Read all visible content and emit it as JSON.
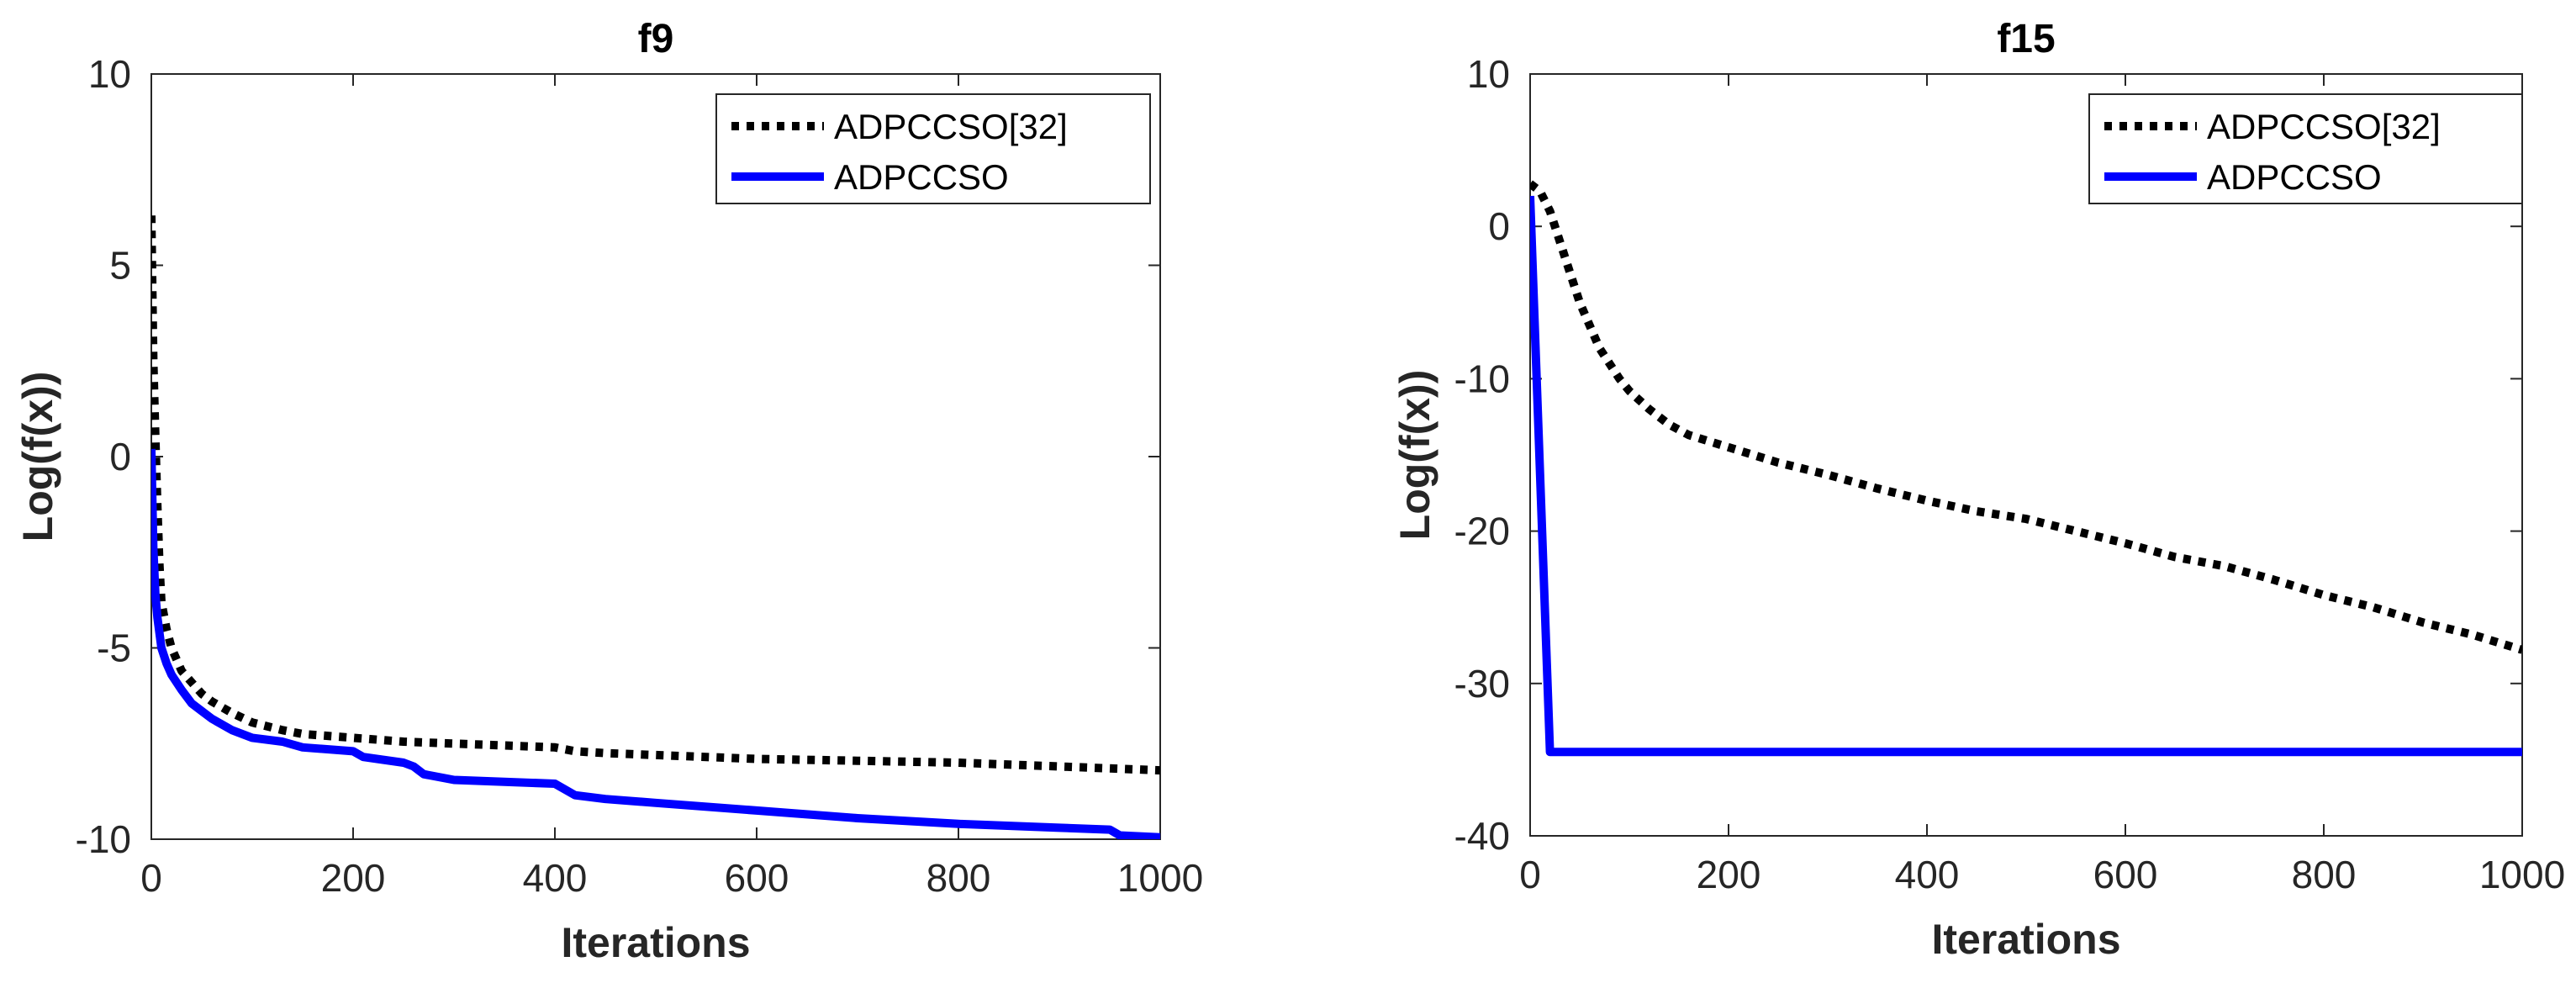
{
  "chart_data": [
    {
      "type": "line",
      "title": "f9",
      "xlabel": "Iterations",
      "ylabel": "Log(f(x))",
      "xlim": [
        0,
        1000
      ],
      "ylim": [
        -10,
        10
      ],
      "xticks": [
        0,
        200,
        400,
        600,
        800,
        1000
      ],
      "yticks": [
        -10,
        -5,
        0,
        5,
        10
      ],
      "legend_position": "top-right",
      "series": [
        {
          "name": "ADPCCSO[32]",
          "color": "#000000",
          "style": "dotted",
          "x": [
            0,
            2,
            4,
            6,
            8,
            10,
            15,
            20,
            30,
            40,
            50,
            60,
            80,
            100,
            130,
            150,
            200,
            250,
            300,
            350,
            400,
            420,
            450,
            500,
            600,
            700,
            800,
            900,
            1000
          ],
          "y": [
            6.3,
            2.5,
            0.5,
            -1.3,
            -2.8,
            -3.8,
            -4.5,
            -5.0,
            -5.6,
            -5.9,
            -6.2,
            -6.4,
            -6.7,
            -6.95,
            -7.15,
            -7.25,
            -7.35,
            -7.45,
            -7.5,
            -7.55,
            -7.6,
            -7.7,
            -7.75,
            -7.8,
            -7.9,
            -7.95,
            -8.0,
            -8.1,
            -8.2
          ]
        },
        {
          "name": "ADPCCSO",
          "color": "#0000ff",
          "style": "solid",
          "x": [
            0,
            2,
            4,
            6,
            8,
            10,
            15,
            20,
            30,
            40,
            50,
            60,
            80,
            100,
            130,
            150,
            200,
            210,
            250,
            260,
            270,
            300,
            400,
            420,
            450,
            500,
            600,
            700,
            800,
            900,
            950,
            960,
            1000
          ],
          "y": [
            0.2,
            -2.4,
            -3.6,
            -4.2,
            -4.6,
            -5.0,
            -5.4,
            -5.7,
            -6.1,
            -6.45,
            -6.65,
            -6.85,
            -7.15,
            -7.35,
            -7.45,
            -7.6,
            -7.7,
            -7.85,
            -8.0,
            -8.1,
            -8.3,
            -8.45,
            -8.55,
            -8.85,
            -8.95,
            -9.05,
            -9.25,
            -9.45,
            -9.6,
            -9.7,
            -9.75,
            -9.9,
            -9.95
          ]
        }
      ]
    },
    {
      "type": "line",
      "title": "f15",
      "xlabel": "Iterations",
      "ylabel": "Log(f(x))",
      "xlim": [
        0,
        1000
      ],
      "ylim": [
        -40,
        10
      ],
      "xticks": [
        0,
        200,
        400,
        600,
        800,
        1000
      ],
      "yticks": [
        -40,
        -30,
        -20,
        -10,
        0,
        10
      ],
      "legend_position": "top-right",
      "series": [
        {
          "name": "ADPCCSO[32]",
          "color": "#000000",
          "style": "dotted",
          "x": [
            0,
            10,
            20,
            30,
            40,
            50,
            60,
            70,
            80,
            90,
            100,
            120,
            140,
            160,
            200,
            250,
            300,
            350,
            400,
            450,
            500,
            550,
            600,
            650,
            700,
            750,
            800,
            850,
            900,
            950,
            1000
          ],
          "y": [
            2.8,
            2.3,
            1.0,
            -1.0,
            -3.0,
            -5.0,
            -6.5,
            -8.0,
            -9.0,
            -10.0,
            -10.8,
            -12.0,
            -13.0,
            -13.7,
            -14.5,
            -15.5,
            -16.3,
            -17.2,
            -18.0,
            -18.7,
            -19.2,
            -20.0,
            -20.8,
            -21.7,
            -22.3,
            -23.2,
            -24.2,
            -25.0,
            -26.0,
            -26.8,
            -27.8
          ]
        },
        {
          "name": "ADPCCSO",
          "color": "#0000ff",
          "style": "solid",
          "x": [
            0,
            20,
            30,
            100,
            200,
            400,
            600,
            800,
            1000
          ],
          "y": [
            2.0,
            -34.5,
            -34.5,
            -34.5,
            -34.5,
            -34.5,
            -34.5,
            -34.5,
            -34.5
          ]
        }
      ]
    }
  ]
}
